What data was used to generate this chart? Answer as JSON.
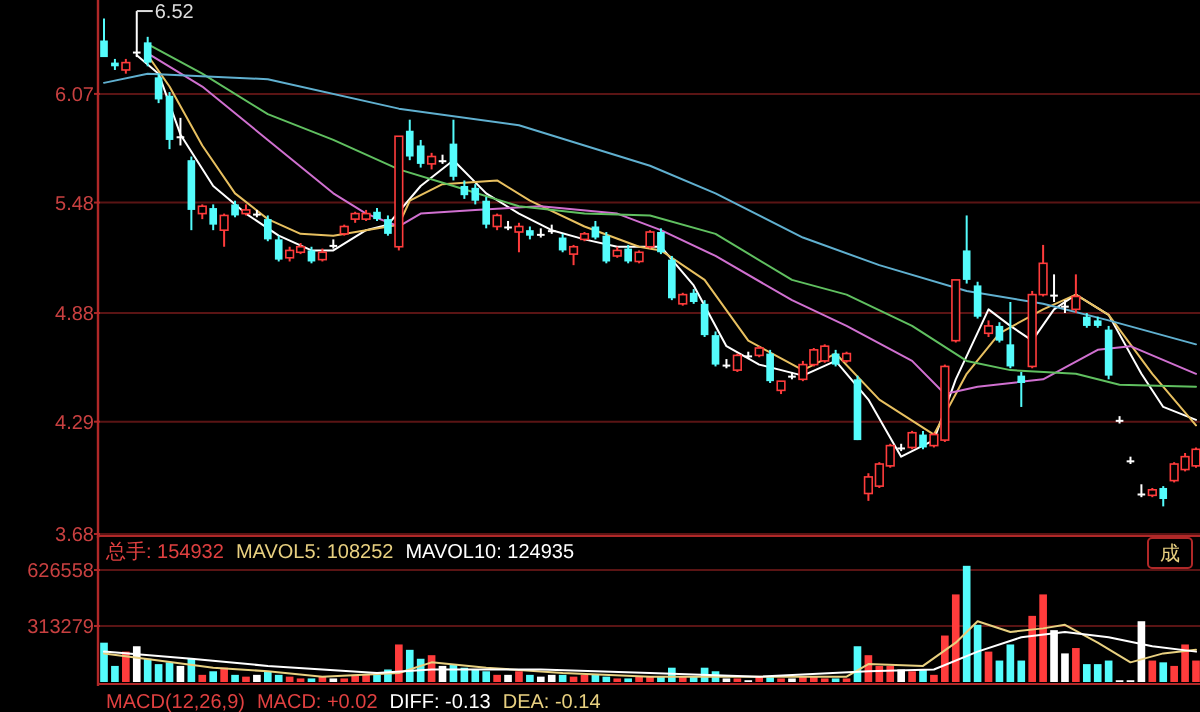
{
  "chart_data": [
    {
      "type": "candlestick",
      "categories": [
        null,
        null,
        null,
        null,
        null,
        null,
        null,
        null,
        null,
        null,
        null,
        null,
        null,
        null,
        null,
        null,
        null,
        null,
        null,
        null,
        null,
        null,
        null,
        null,
        null,
        null,
        null,
        null,
        null,
        null,
        null,
        null,
        null,
        null,
        null,
        null,
        null,
        null,
        null,
        null,
        null,
        null,
        null,
        null,
        null,
        null,
        null,
        null,
        null,
        null,
        null,
        null,
        null,
        null,
        null,
        null,
        null,
        null,
        null,
        null,
        null,
        null,
        null,
        null,
        null,
        null,
        null,
        null,
        null,
        null,
        null,
        null,
        null,
        null,
        null,
        null,
        null,
        null,
        null,
        null,
        null,
        null,
        null,
        null,
        null,
        null,
        null,
        null,
        null,
        null,
        null,
        null,
        null,
        null,
        null,
        null,
        null,
        null,
        null,
        null,
        null
      ],
      "ohlc": [
        [
          6.36,
          6.48,
          6.27,
          6.27
        ],
        [
          6.24,
          6.26,
          6.2,
          6.22
        ],
        [
          6.2,
          6.26,
          6.18,
          6.24
        ],
        [
          6.3,
          6.52,
          6.27,
          6.3
        ],
        [
          6.35,
          6.38,
          6.22,
          6.24
        ],
        [
          6.16,
          6.18,
          6.02,
          6.04
        ],
        [
          6.06,
          6.08,
          5.77,
          5.82
        ],
        [
          5.84,
          5.94,
          5.79,
          5.84
        ],
        [
          5.71,
          5.73,
          5.33,
          5.44
        ],
        [
          5.42,
          5.47,
          5.39,
          5.46
        ],
        [
          5.45,
          5.47,
          5.33,
          5.36
        ],
        [
          5.33,
          5.42,
          5.24,
          5.41
        ],
        [
          5.47,
          5.49,
          5.4,
          5.41
        ],
        [
          5.42,
          5.47,
          5.41,
          5.44
        ],
        [
          5.42,
          5.44,
          5.4,
          5.42
        ],
        [
          5.39,
          5.41,
          5.27,
          5.28
        ],
        [
          5.28,
          5.3,
          5.16,
          5.17
        ],
        [
          5.18,
          5.24,
          5.16,
          5.22
        ],
        [
          5.21,
          5.26,
          5.2,
          5.24
        ],
        [
          5.22,
          5.24,
          5.15,
          5.16
        ],
        [
          5.17,
          5.23,
          5.16,
          5.21
        ],
        [
          5.25,
          5.28,
          5.23,
          5.25
        ],
        [
          5.31,
          5.36,
          5.3,
          5.35
        ],
        [
          5.39,
          5.43,
          5.37,
          5.42
        ],
        [
          5.39,
          5.44,
          5.38,
          5.42
        ],
        [
          5.43,
          5.45,
          5.38,
          5.39
        ],
        [
          5.39,
          5.41,
          5.3,
          5.31
        ],
        [
          5.24,
          5.84,
          5.22,
          5.84
        ],
        [
          5.87,
          5.93,
          5.71,
          5.73
        ],
        [
          5.79,
          5.82,
          5.67,
          5.69
        ],
        [
          5.69,
          5.75,
          5.66,
          5.73
        ],
        [
          5.71,
          5.74,
          5.69,
          5.71
        ],
        [
          5.8,
          5.93,
          5.6,
          5.62
        ],
        [
          5.57,
          5.6,
          5.5,
          5.52
        ],
        [
          5.56,
          5.58,
          5.47,
          5.49
        ],
        [
          5.49,
          5.51,
          5.34,
          5.36
        ],
        [
          5.35,
          5.42,
          5.33,
          5.41
        ],
        [
          5.35,
          5.38,
          5.33,
          5.35
        ],
        [
          5.32,
          5.37,
          5.21,
          5.35
        ],
        [
          5.33,
          5.35,
          5.28,
          5.3
        ],
        [
          5.31,
          5.34,
          5.29,
          5.31
        ],
        [
          5.33,
          5.36,
          5.31,
          5.33
        ],
        [
          5.29,
          5.31,
          5.21,
          5.22
        ],
        [
          5.2,
          5.25,
          5.14,
          5.24
        ],
        [
          5.28,
          5.32,
          5.27,
          5.31
        ],
        [
          5.35,
          5.38,
          5.28,
          5.29
        ],
        [
          5.3,
          5.32,
          5.15,
          5.16
        ],
        [
          5.19,
          5.24,
          5.18,
          5.22
        ],
        [
          5.23,
          5.25,
          5.15,
          5.16
        ],
        [
          5.16,
          5.22,
          5.15,
          5.21
        ],
        [
          5.24,
          5.33,
          5.23,
          5.32
        ],
        [
          5.32,
          5.34,
          5.2,
          5.21
        ],
        [
          5.17,
          5.19,
          4.95,
          4.96
        ],
        [
          4.93,
          4.99,
          4.92,
          4.98
        ],
        [
          4.99,
          5.01,
          4.93,
          4.94
        ],
        [
          4.93,
          4.95,
          4.75,
          4.76
        ],
        [
          4.76,
          4.78,
          4.59,
          4.6
        ],
        [
          4.6,
          4.63,
          4.58,
          4.6
        ],
        [
          4.57,
          4.66,
          4.56,
          4.65
        ],
        [
          4.65,
          4.67,
          4.63,
          4.65
        ],
        [
          4.65,
          4.7,
          4.64,
          4.69
        ],
        [
          4.66,
          4.68,
          4.5,
          4.51
        ],
        [
          4.46,
          4.51,
          4.44,
          4.51
        ],
        [
          4.54,
          4.56,
          4.52,
          4.54
        ],
        [
          4.52,
          4.62,
          4.51,
          4.6
        ],
        [
          4.6,
          4.69,
          4.59,
          4.68
        ],
        [
          4.62,
          4.71,
          4.61,
          4.7
        ],
        [
          4.66,
          4.68,
          4.59,
          4.6
        ],
        [
          4.62,
          4.67,
          4.61,
          4.66
        ],
        [
          4.52,
          4.54,
          4.19,
          4.19
        ],
        [
          3.9,
          4.01,
          3.86,
          3.99
        ],
        [
          3.94,
          4.07,
          3.93,
          4.06
        ],
        [
          4.05,
          4.17,
          4.04,
          4.16
        ],
        [
          4.15,
          4.17,
          4.13,
          4.15
        ],
        [
          4.15,
          4.24,
          4.14,
          4.23
        ],
        [
          4.22,
          4.24,
          4.14,
          4.15
        ],
        [
          4.16,
          4.23,
          4.15,
          4.22
        ],
        [
          4.19,
          4.6,
          4.18,
          4.59
        ],
        [
          4.73,
          5.06,
          4.72,
          5.06
        ],
        [
          5.22,
          5.41,
          5.04,
          5.06
        ],
        [
          5.03,
          5.05,
          4.85,
          4.86
        ],
        [
          4.77,
          4.84,
          4.75,
          4.81
        ],
        [
          4.81,
          4.83,
          4.72,
          4.73
        ],
        [
          4.71,
          4.94,
          4.58,
          4.59
        ],
        [
          4.54,
          4.56,
          4.37,
          4.5
        ],
        [
          4.59,
          5.0,
          4.58,
          4.98
        ],
        [
          4.98,
          5.25,
          4.97,
          5.15
        ],
        [
          4.98,
          5.09,
          4.94,
          4.98
        ],
        [
          4.92,
          4.95,
          4.88,
          4.92
        ],
        [
          4.9,
          5.09,
          4.88,
          4.97
        ],
        [
          4.86,
          4.88,
          4.8,
          4.81
        ],
        [
          4.84,
          4.86,
          4.8,
          4.81
        ],
        [
          4.79,
          4.81,
          4.52,
          4.54
        ],
        [
          4.3,
          4.32,
          4.28,
          4.3
        ],
        [
          4.08,
          4.1,
          4.06,
          4.08
        ],
        [
          3.9,
          3.95,
          3.88,
          3.9
        ],
        [
          3.89,
          3.93,
          3.88,
          3.92
        ],
        [
          3.93,
          3.94,
          3.83,
          3.87
        ],
        [
          3.97,
          4.07,
          3.96,
          4.06
        ],
        [
          4.03,
          4.12,
          4.02,
          4.1
        ],
        [
          4.05,
          4.15,
          4.04,
          4.14
        ]
      ],
      "colors": [
        "#54fcfc",
        "#54fcfc",
        "#ff3c3c",
        "#ffffff",
        "#54fcfc",
        "#54fcfc",
        "#54fcfc",
        "#ffffff",
        "#54fcfc",
        "#ff3c3c",
        "#54fcfc",
        "#ff3c3c",
        "#54fcfc",
        "#ff3c3c",
        "#ffffff",
        "#54fcfc",
        "#54fcfc",
        "#ff3c3c",
        "#ff3c3c",
        "#54fcfc",
        "#ff3c3c",
        "#ffffff",
        "#ff3c3c",
        "#ff3c3c",
        "#ff3c3c",
        "#54fcfc",
        "#54fcfc",
        "#ff3c3c",
        "#54fcfc",
        "#54fcfc",
        "#ff3c3c",
        "#ffffff",
        "#54fcfc",
        "#54fcfc",
        "#54fcfc",
        "#54fcfc",
        "#ff3c3c",
        "#ffffff",
        "#ff3c3c",
        "#54fcfc",
        "#ffffff",
        "#ffffff",
        "#54fcfc",
        "#ff3c3c",
        "#ff3c3c",
        "#54fcfc",
        "#54fcfc",
        "#ff3c3c",
        "#54fcfc",
        "#ff3c3c",
        "#ff3c3c",
        "#54fcfc",
        "#54fcfc",
        "#ff3c3c",
        "#54fcfc",
        "#54fcfc",
        "#54fcfc",
        "#ffffff",
        "#ff3c3c",
        "#ffffff",
        "#ff3c3c",
        "#54fcfc",
        "#ff3c3c",
        "#ffffff",
        "#ff3c3c",
        "#ff3c3c",
        "#ff3c3c",
        "#54fcfc",
        "#ff3c3c",
        "#54fcfc",
        "#ff3c3c",
        "#ff3c3c",
        "#ff3c3c",
        "#ffffff",
        "#ff3c3c",
        "#54fcfc",
        "#ff3c3c",
        "#ff3c3c",
        "#ff3c3c",
        "#54fcfc",
        "#54fcfc",
        "#ff3c3c",
        "#54fcfc",
        "#54fcfc",
        "#54fcfc",
        "#ff3c3c",
        "#ff3c3c",
        "#ffffff",
        "#ffffff",
        "#ff3c3c",
        "#54fcfc",
        "#54fcfc",
        "#54fcfc",
        "#ffffff",
        "#ffffff",
        "#ffffff",
        "#ff3c3c",
        "#54fcfc",
        "#ff3c3c",
        "#ff3c3c",
        "#ff3c3c"
      ],
      "series": [
        {
          "type": "line",
          "color": "#ffffff",
          "values": [
            null,
            null,
            null,
            6.28,
            null,
            6.18,
            null,
            5.85,
            null,
            null,
            5.57,
            null,
            null,
            5.42,
            null,
            null,
            5.3,
            null,
            null,
            5.22,
            null,
            5.22,
            null,
            null,
            5.33,
            null,
            5.36,
            null,
            null,
            5.57,
            null,
            null,
            5.71,
            null,
            null,
            5.53,
            null,
            null,
            5.42,
            null,
            null,
            5.33,
            null,
            null,
            5.28,
            null,
            null,
            5.24,
            null,
            null,
            null,
            5.24,
            null,
            null,
            5.03,
            null,
            null,
            4.7,
            null,
            null,
            4.6,
            null,
            null,
            null,
            4.54,
            null,
            null,
            4.62,
            null,
            null,
            4.41,
            null,
            null,
            4.1,
            null,
            null,
            4.19,
            null,
            4.52,
            null,
            null,
            4.9,
            null,
            4.81,
            null,
            4.73,
            null,
            4.9,
            null,
            4.98,
            null,
            null,
            4.87,
            null,
            null,
            4.55,
            null,
            4.37,
            null,
            null,
            4.3
          ]
        },
        {
          "type": "line",
          "color": "#e8c060",
          "values": [
            null,
            null,
            null,
            null,
            6.28,
            null,
            6.11,
            null,
            null,
            5.79,
            null,
            null,
            5.53,
            null,
            null,
            5.39,
            null,
            null,
            5.31,
            null,
            null,
            5.3,
            null,
            null,
            5.33,
            null,
            null,
            5.36,
            5.49,
            null,
            null,
            5.58,
            null,
            null,
            null,
            null,
            5.6,
            null,
            null,
            5.49,
            null,
            null,
            null,
            null,
            5.35,
            null,
            null,
            null,
            null,
            5.24,
            null,
            5.22,
            null,
            null,
            null,
            5.06,
            null,
            null,
            null,
            4.73,
            null,
            null,
            null,
            null,
            4.57,
            null,
            null,
            4.66,
            null,
            null,
            null,
            4.41,
            null,
            null,
            null,
            null,
            4.22,
            null,
            null,
            4.55,
            null,
            null,
            4.77,
            null,
            null,
            null,
            4.9,
            null,
            null,
            4.98,
            null,
            null,
            4.87,
            null,
            null,
            null,
            4.55,
            null,
            null,
            null,
            4.27
          ]
        },
        {
          "type": "line",
          "color": "#d070d0",
          "values": [
            null,
            null,
            null,
            null,
            6.29,
            null,
            null,
            null,
            null,
            6.11,
            null,
            null,
            null,
            null,
            null,
            5.82,
            null,
            null,
            null,
            null,
            null,
            5.53,
            null,
            null,
            5.42,
            null,
            null,
            5.35,
            null,
            5.42,
            null,
            null,
            null,
            null,
            5.44,
            null,
            null,
            null,
            null,
            null,
            5.46,
            null,
            null,
            null,
            null,
            null,
            null,
            5.42,
            null,
            null,
            null,
            5.33,
            null,
            null,
            null,
            null,
            5.19,
            null,
            null,
            null,
            null,
            null,
            null,
            4.95,
            null,
            null,
            null,
            null,
            4.81,
            null,
            null,
            null,
            null,
            null,
            4.62,
            null,
            null,
            4.44,
            null,
            null,
            4.48,
            null,
            null,
            null,
            null,
            null,
            4.52,
            null,
            null,
            null,
            null,
            4.68,
            null,
            null,
            4.7,
            null,
            null,
            null,
            null,
            null,
            4.55
          ]
        },
        {
          "type": "line",
          "color": "#60c060",
          "values": [
            null,
            null,
            null,
            null,
            6.34,
            null,
            null,
            null,
            null,
            6.18,
            null,
            null,
            null,
            null,
            null,
            5.96,
            null,
            null,
            null,
            null,
            null,
            5.82,
            null,
            null,
            null,
            null,
            null,
            5.66,
            null,
            null,
            null,
            null,
            5.57,
            null,
            null,
            null,
            null,
            null,
            5.46,
            null,
            null,
            null,
            null,
            null,
            5.42,
            null,
            null,
            null,
            null,
            null,
            5.41,
            null,
            null,
            null,
            null,
            null,
            5.31,
            null,
            null,
            null,
            null,
            null,
            null,
            5.06,
            null,
            null,
            null,
            null,
            4.98,
            null,
            null,
            null,
            null,
            null,
            4.81,
            null,
            null,
            null,
            null,
            4.62,
            null,
            null,
            null,
            4.57,
            null,
            null,
            null,
            null,
            null,
            4.55,
            null,
            null,
            null,
            4.49,
            null,
            null,
            null,
            null,
            null,
            null,
            4.48
          ]
        },
        {
          "type": "line",
          "color": "#60b0d0",
          "values": [
            6.13,
            null,
            null,
            null,
            6.18,
            null,
            null,
            null,
            null,
            null,
            null,
            null,
            null,
            null,
            null,
            6.15,
            null,
            null,
            null,
            null,
            null,
            null,
            null,
            null,
            null,
            null,
            null,
            5.99,
            null,
            null,
            null,
            null,
            null,
            null,
            null,
            null,
            null,
            null,
            5.9,
            null,
            null,
            null,
            null,
            null,
            null,
            null,
            null,
            null,
            null,
            null,
            5.68,
            null,
            null,
            null,
            null,
            null,
            5.53,
            null,
            null,
            null,
            null,
            null,
            null,
            null,
            5.29,
            null,
            null,
            null,
            null,
            null,
            null,
            5.14,
            null,
            null,
            null,
            null,
            null,
            null,
            null,
            5.0,
            null,
            null,
            null,
            null,
            null,
            null,
            4.93,
            null,
            null,
            null,
            null,
            null,
            4.84,
            null,
            null,
            null,
            null,
            null,
            null,
            null,
            4.71
          ]
        }
      ],
      "ylim": [
        3.68,
        6.58
      ],
      "yticks": [
        3.68,
        4.29,
        4.88,
        5.48,
        6.07
      ],
      "grid": "y",
      "tick_labels": "y",
      "annotations": [
        "6.52"
      ]
    },
    {
      "type": "bar",
      "categories": [
        null,
        null,
        null,
        null,
        null,
        null,
        null,
        null,
        null,
        null,
        null,
        null,
        null,
        null,
        null,
        null,
        null,
        null,
        null,
        null,
        null,
        null,
        null,
        null,
        null,
        null,
        null,
        null,
        null,
        null,
        null,
        null,
        null,
        null,
        null,
        null,
        null,
        null,
        null,
        null,
        null,
        null,
        null,
        null,
        null,
        null,
        null,
        null,
        null,
        null,
        null,
        null,
        null,
        null,
        null,
        null,
        null,
        null,
        null,
        null,
        null,
        null,
        null,
        null,
        null,
        null,
        null,
        null,
        null,
        null,
        null,
        null,
        null,
        null,
        null,
        null,
        null,
        null,
        null,
        null,
        null,
        null,
        null,
        null,
        null,
        null,
        null,
        null,
        null,
        null,
        null,
        null,
        null,
        null,
        null,
        null,
        null,
        null,
        null,
        null,
        null
      ],
      "values": [
        220000,
        90000,
        170000,
        200000,
        130000,
        100000,
        110000,
        90000,
        130000,
        40000,
        60000,
        80000,
        40000,
        30000,
        40000,
        60000,
        40000,
        30000,
        20000,
        20000,
        30000,
        20000,
        20000,
        40000,
        40000,
        40000,
        70000,
        210000,
        180000,
        130000,
        150000,
        90000,
        100000,
        80000,
        70000,
        60000,
        40000,
        40000,
        60000,
        40000,
        30000,
        40000,
        40000,
        30000,
        40000,
        40000,
        30000,
        20000,
        20000,
        30000,
        30000,
        30000,
        80000,
        30000,
        30000,
        80000,
        60000,
        20000,
        20000,
        10000,
        30000,
        30000,
        20000,
        20000,
        30000,
        30000,
        20000,
        20000,
        20000,
        200000,
        150000,
        90000,
        90000,
        70000,
        60000,
        70000,
        40000,
        260000,
        490000,
        650000,
        320000,
        170000,
        120000,
        210000,
        120000,
        370000,
        490000,
        290000,
        160000,
        190000,
        100000,
        100000,
        120000,
        10000,
        10000,
        340000,
        120000,
        110000,
        90000,
        210000,
        120000
      ],
      "colors": [
        "#54fcfc",
        "#54fcfc",
        "#ff3c3c",
        "#ffffff",
        "#54fcfc",
        "#54fcfc",
        "#54fcfc",
        "#ffffff",
        "#54fcfc",
        "#ff3c3c",
        "#54fcfc",
        "#ff3c3c",
        "#54fcfc",
        "#ff3c3c",
        "#ffffff",
        "#54fcfc",
        "#54fcfc",
        "#ff3c3c",
        "#ff3c3c",
        "#54fcfc",
        "#ff3c3c",
        "#ffffff",
        "#ff3c3c",
        "#ff3c3c",
        "#ff3c3c",
        "#54fcfc",
        "#54fcfc",
        "#ff3c3c",
        "#54fcfc",
        "#54fcfc",
        "#ff3c3c",
        "#ffffff",
        "#54fcfc",
        "#54fcfc",
        "#54fcfc",
        "#54fcfc",
        "#ff3c3c",
        "#ffffff",
        "#ff3c3c",
        "#54fcfc",
        "#ffffff",
        "#ffffff",
        "#54fcfc",
        "#ff3c3c",
        "#ff3c3c",
        "#54fcfc",
        "#54fcfc",
        "#ff3c3c",
        "#54fcfc",
        "#ff3c3c",
        "#ff3c3c",
        "#54fcfc",
        "#54fcfc",
        "#ff3c3c",
        "#54fcfc",
        "#54fcfc",
        "#54fcfc",
        "#ffffff",
        "#ff3c3c",
        "#ffffff",
        "#ff3c3c",
        "#54fcfc",
        "#ff3c3c",
        "#ffffff",
        "#ff3c3c",
        "#ff3c3c",
        "#ff3c3c",
        "#54fcfc",
        "#ff3c3c",
        "#54fcfc",
        "#ff3c3c",
        "#ff3c3c",
        "#ff3c3c",
        "#ffffff",
        "#ff3c3c",
        "#54fcfc",
        "#ff3c3c",
        "#ff3c3c",
        "#ff3c3c",
        "#54fcfc",
        "#54fcfc",
        "#ff3c3c",
        "#54fcfc",
        "#54fcfc",
        "#54fcfc",
        "#ff3c3c",
        "#ff3c3c",
        "#ffffff",
        "#ffffff",
        "#ff3c3c",
        "#54fcfc",
        "#54fcfc",
        "#54fcfc",
        "#ffffff",
        "#ffffff",
        "#ffffff",
        "#ff3c3c",
        "#54fcfc",
        "#ff3c3c",
        "#ff3c3c",
        "#ff3c3c"
      ],
      "series": [
        {
          "type": "line",
          "color": "#e8d080",
          "values": [
            160000,
            null,
            null,
            null,
            null,
            120000,
            null,
            null,
            null,
            null,
            80000,
            null,
            null,
            null,
            null,
            60000,
            null,
            null,
            null,
            null,
            30000,
            null,
            null,
            null,
            null,
            null,
            null,
            50000,
            null,
            null,
            110000,
            null,
            null,
            null,
            null,
            80000,
            null,
            null,
            null,
            null,
            null,
            null,
            50000,
            null,
            null,
            null,
            null,
            null,
            null,
            null,
            30000,
            null,
            null,
            null,
            null,
            null,
            null,
            null,
            null,
            null,
            30000,
            null,
            null,
            null,
            null,
            null,
            null,
            null,
            30000,
            null,
            100000,
            null,
            null,
            null,
            null,
            90000,
            null,
            null,
            220000,
            null,
            340000,
            null,
            null,
            280000,
            null,
            null,
            300000,
            null,
            320000,
            null,
            null,
            220000,
            null,
            null,
            110000,
            null,
            null,
            160000,
            null,
            null,
            180000
          ]
        },
        {
          "type": "line",
          "color": "#ffffff",
          "values": [
            170000,
            null,
            null,
            null,
            null,
            null,
            null,
            null,
            130000,
            null,
            null,
            null,
            null,
            null,
            null,
            90000,
            null,
            null,
            null,
            null,
            null,
            null,
            null,
            null,
            null,
            50000,
            null,
            null,
            null,
            null,
            70000,
            null,
            null,
            null,
            null,
            null,
            null,
            null,
            null,
            null,
            70000,
            null,
            null,
            null,
            null,
            null,
            null,
            null,
            null,
            null,
            50000,
            null,
            null,
            null,
            null,
            null,
            null,
            null,
            null,
            null,
            30000,
            null,
            null,
            null,
            null,
            null,
            null,
            null,
            null,
            null,
            60000,
            null,
            null,
            null,
            null,
            null,
            70000,
            null,
            null,
            null,
            170000,
            null,
            null,
            null,
            250000,
            null,
            null,
            null,
            280000,
            null,
            null,
            null,
            250000,
            null,
            null,
            null,
            200000,
            null,
            null,
            null,
            170000
          ]
        }
      ],
      "ylim": [
        0,
        816800
      ],
      "yticks": [
        313279,
        626558
      ],
      "grid": "y",
      "tick_labels": "y",
      "annotations": [
        "总手: 154932",
        "MAVOL5: 108252",
        "MAVOL10: 124935",
        "MACD(12,26,9)",
        "MACD: +0.02",
        "DIFF: -0.13",
        "DEA: -0.14",
        "成"
      ]
    }
  ]
}
